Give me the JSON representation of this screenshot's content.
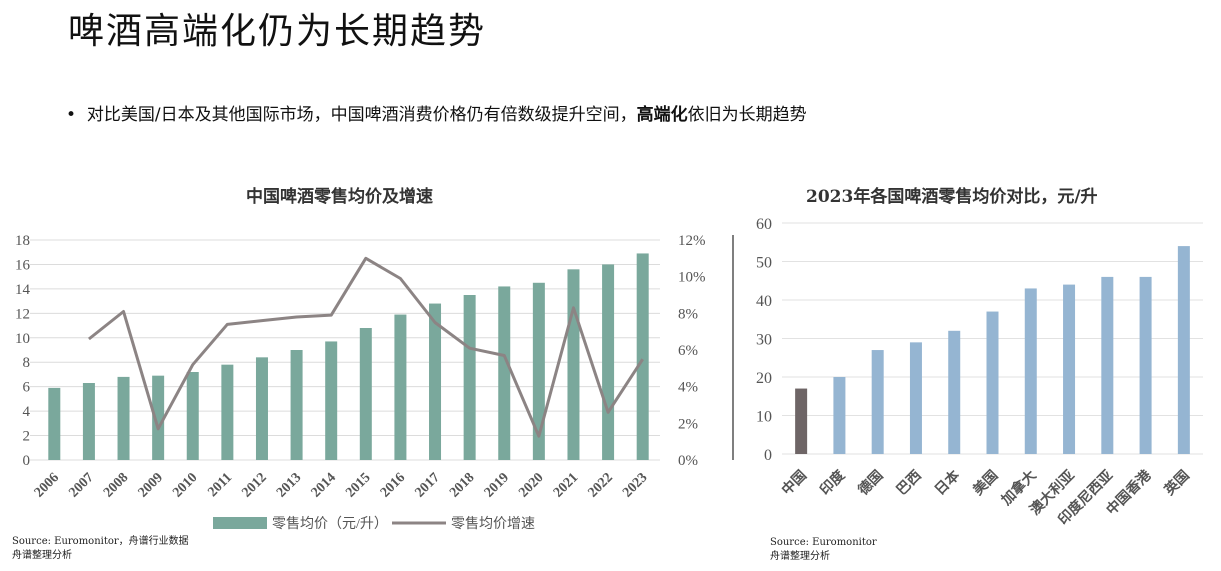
{
  "title": "啤酒高端化仍为长期趋势",
  "bullet": {
    "dot": "•",
    "text": "对比美国/日本及其他国际市场，中国啤酒消费价格仍有倍数级提升空间，",
    "bold": "高端化",
    "tail": "依旧为长期趋势"
  },
  "chart_data": [
    {
      "type": "bar+line",
      "title": "中国啤酒零售均价及增速",
      "categories": [
        "2006",
        "2007",
        "2008",
        "2009",
        "2010",
        "2011",
        "2012",
        "2013",
        "2014",
        "2015",
        "2016",
        "2017",
        "2018",
        "2019",
        "2020",
        "2021",
        "2022",
        "2023"
      ],
      "series": [
        {
          "name": "零售均价（元/升）",
          "type": "bar",
          "axis": "left",
          "color": "#7aa89c",
          "values": [
            5.9,
            6.3,
            6.8,
            6.9,
            7.2,
            7.8,
            8.4,
            9.0,
            9.7,
            10.8,
            11.9,
            12.8,
            13.5,
            14.2,
            14.5,
            15.6,
            16.0,
            16.9
          ]
        },
        {
          "name": "零售均价增速",
          "type": "line",
          "axis": "right",
          "color": "#8c8484",
          "values": [
            null,
            6.6,
            8.1,
            1.7,
            5.2,
            7.4,
            7.6,
            7.8,
            7.9,
            11.0,
            9.9,
            7.5,
            6.1,
            5.7,
            1.3,
            8.3,
            2.6,
            5.5
          ]
        }
      ],
      "ylim": [
        0,
        18
      ],
      "yticks": [
        "0",
        "2",
        "4",
        "6",
        "8",
        "10",
        "12",
        "14",
        "16",
        "18"
      ],
      "y2lim": [
        0,
        12
      ],
      "y2ticks": [
        "0%",
        "2%",
        "4%",
        "6%",
        "8%",
        "10%",
        "12%"
      ],
      "legend": "bottom",
      "source": [
        "Source: Euromonitor，舟谱行业数据",
        "舟谱整理分析"
      ]
    },
    {
      "type": "bar",
      "title": "2023年各国啤酒零售均价对比，元/升",
      "categories": [
        "中国",
        "印度",
        "德国",
        "巴西",
        "日本",
        "美国",
        "加拿大",
        "澳大利亚",
        "印度尼西亚",
        "中国香港",
        "英国"
      ],
      "values": [
        17,
        20,
        27,
        29,
        32,
        37,
        43,
        44,
        46,
        46,
        54
      ],
      "colors": {
        "highlight": "#6e6566",
        "default": "#95b5d2"
      },
      "ylim": [
        0,
        60
      ],
      "yticks": [
        "0",
        "10",
        "20",
        "30",
        "40",
        "50",
        "60"
      ],
      "source": [
        "Source: Euromonitor",
        "舟谱整理分析"
      ]
    }
  ]
}
